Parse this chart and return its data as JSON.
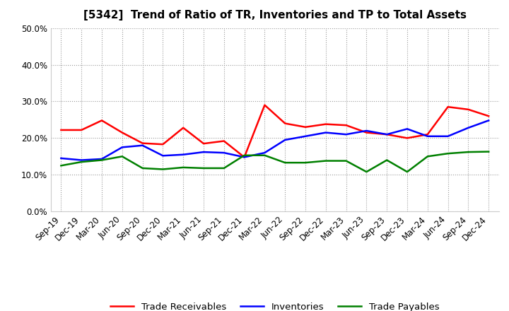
{
  "title": "[5342]  Trend of Ratio of TR, Inventories and TP to Total Assets",
  "x_labels": [
    "Sep-19",
    "Dec-19",
    "Mar-20",
    "Jun-20",
    "Sep-20",
    "Dec-20",
    "Mar-21",
    "Jun-21",
    "Sep-21",
    "Dec-21",
    "Mar-22",
    "Jun-22",
    "Sep-22",
    "Dec-22",
    "Mar-23",
    "Jun-23",
    "Sep-23",
    "Dec-23",
    "Mar-24",
    "Jun-24",
    "Sep-24",
    "Dec-24"
  ],
  "trade_receivables": [
    0.222,
    0.222,
    0.248,
    0.215,
    0.186,
    0.183,
    0.228,
    0.185,
    0.192,
    0.148,
    0.29,
    0.24,
    0.23,
    0.238,
    0.235,
    0.215,
    0.21,
    0.2,
    0.21,
    0.285,
    0.278,
    0.26
  ],
  "inventories": [
    0.145,
    0.14,
    0.143,
    0.175,
    0.18,
    0.152,
    0.155,
    0.162,
    0.16,
    0.148,
    0.16,
    0.195,
    0.205,
    0.215,
    0.21,
    0.22,
    0.21,
    0.225,
    0.205,
    0.205,
    0.228,
    0.248
  ],
  "trade_payables": [
    0.125,
    0.135,
    0.14,
    0.15,
    0.118,
    0.115,
    0.12,
    0.118,
    0.118,
    0.153,
    0.153,
    0.133,
    0.133,
    0.138,
    0.138,
    0.108,
    0.14,
    0.108,
    0.15,
    0.158,
    0.162,
    0.163
  ],
  "colors": {
    "trade_receivables": "#ff0000",
    "inventories": "#0000ff",
    "trade_payables": "#008000"
  },
  "ylim": [
    0.0,
    0.5
  ],
  "yticks": [
    0.0,
    0.1,
    0.2,
    0.3,
    0.4,
    0.5
  ],
  "background_color": "#ffffff",
  "plot_bg_color": "#ffffff",
  "grid_color": "#999999",
  "legend_labels": [
    "Trade Receivables",
    "Inventories",
    "Trade Payables"
  ],
  "title_fontsize": 11,
  "tick_fontsize": 8.5,
  "legend_fontsize": 9.5
}
